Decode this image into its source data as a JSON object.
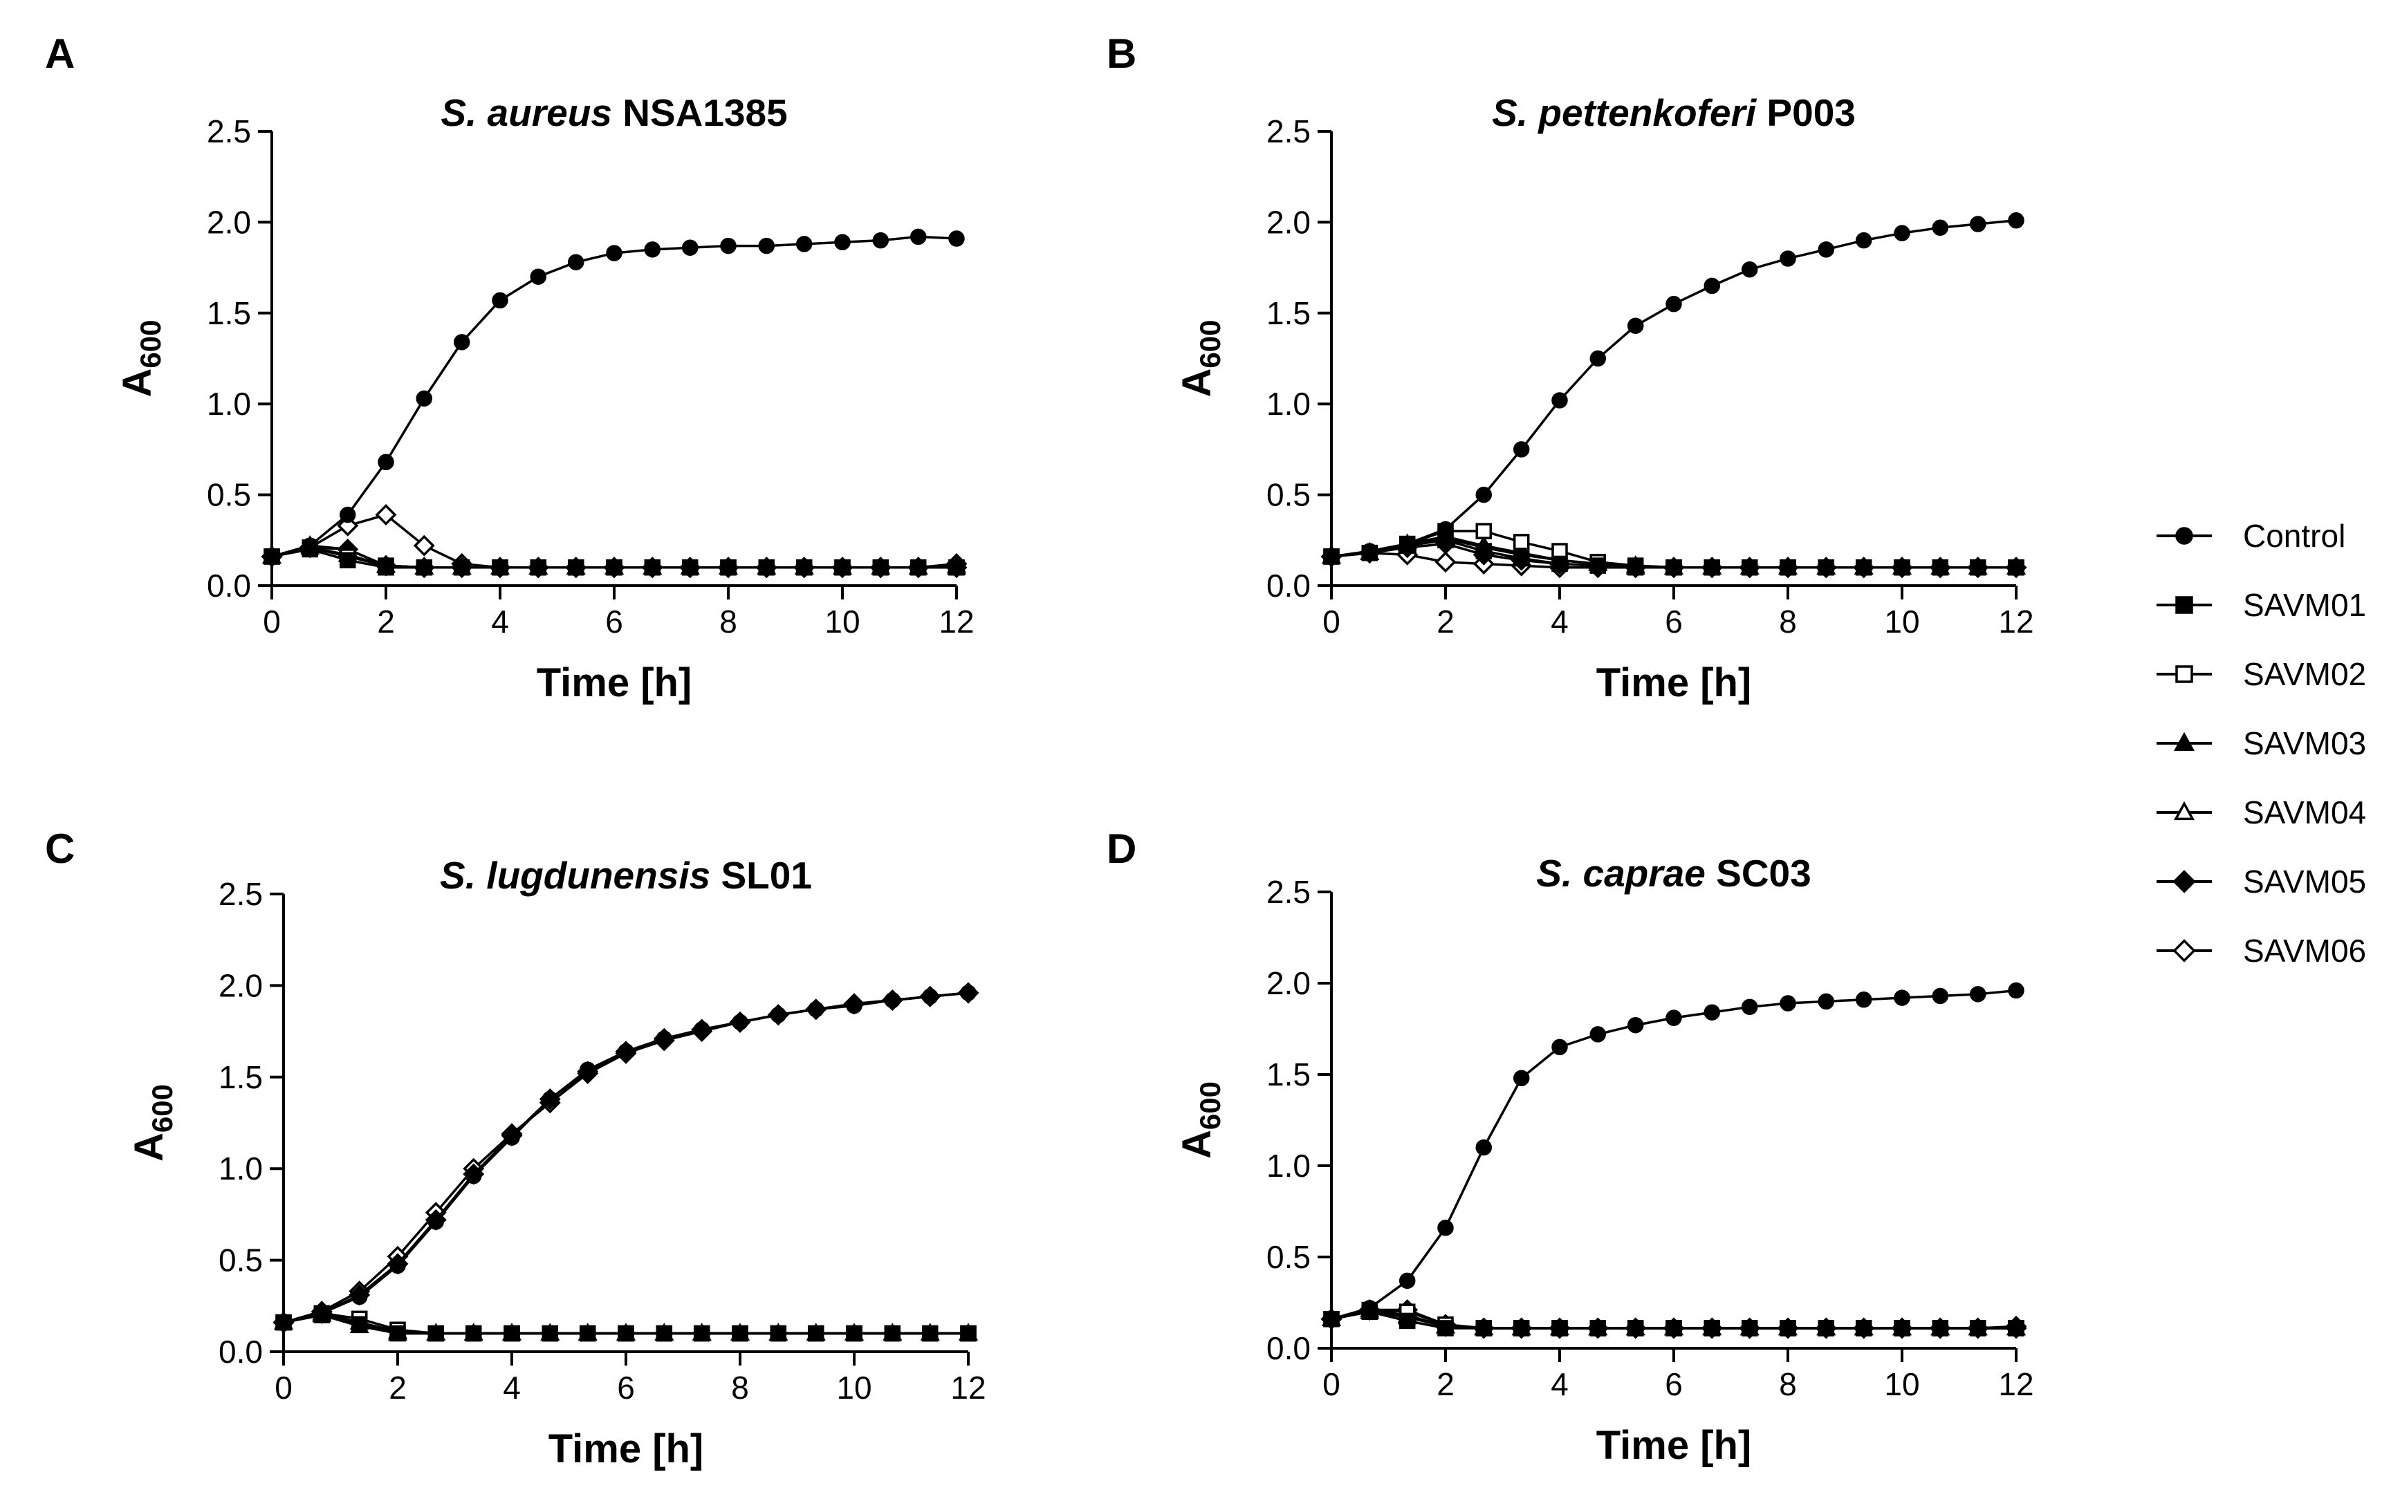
{
  "figure": {
    "legend": {
      "entries": [
        {
          "name": "Control",
          "marker": "circle",
          "filled": true
        },
        {
          "name": "SAVM01",
          "marker": "square",
          "filled": true
        },
        {
          "name": "SAVM02",
          "marker": "square",
          "filled": false
        },
        {
          "name": "SAVM03",
          "marker": "triangle",
          "filled": true
        },
        {
          "name": "SAVM04",
          "marker": "triangle",
          "filled": false
        },
        {
          "name": "SAVM05",
          "marker": "diamond",
          "filled": true
        },
        {
          "name": "SAVM06",
          "marker": "diamond",
          "filled": false
        }
      ]
    }
  },
  "chart_data": [
    {
      "panel": "A",
      "type": "line",
      "title_italic": "S. aureus",
      "title_rest": " NSA1385",
      "xlabel": "Time [h]",
      "ylabel_main": "A",
      "ylabel_sub": "600",
      "xlim": [
        0,
        12
      ],
      "ylim": [
        0,
        2.5
      ],
      "xticks": [
        "0",
        "2",
        "4",
        "6",
        "8",
        "10",
        "12"
      ],
      "yticks": [
        "0.0",
        "0.5",
        "1.0",
        "1.5",
        "2.0",
        "2.5"
      ],
      "x": [
        0,
        0.67,
        1.33,
        2,
        2.67,
        3.33,
        4,
        4.67,
        5.33,
        6,
        6.67,
        7.33,
        8,
        8.67,
        9.33,
        10,
        10.67,
        11.33,
        12
      ],
      "series": [
        {
          "name": "Control",
          "values": [
            0.16,
            0.22,
            0.39,
            0.68,
            1.03,
            1.34,
            1.57,
            1.7,
            1.78,
            1.83,
            1.85,
            1.86,
            1.87,
            1.87,
            1.88,
            1.89,
            1.9,
            1.92,
            1.91
          ]
        },
        {
          "name": "SAVM01",
          "values": [
            0.16,
            0.2,
            0.14,
            0.1,
            0.1,
            0.1,
            0.1,
            0.1,
            0.1,
            0.1,
            0.1,
            0.1,
            0.1,
            0.1,
            0.1,
            0.1,
            0.1,
            0.1,
            0.1
          ]
        },
        {
          "name": "SAVM02",
          "values": [
            0.16,
            0.21,
            0.16,
            0.11,
            0.1,
            0.1,
            0.1,
            0.1,
            0.1,
            0.1,
            0.1,
            0.1,
            0.1,
            0.1,
            0.1,
            0.1,
            0.1,
            0.1,
            0.1
          ]
        },
        {
          "name": "SAVM03",
          "values": [
            0.16,
            0.22,
            0.2,
            0.11,
            0.1,
            0.1,
            0.1,
            0.1,
            0.1,
            0.1,
            0.1,
            0.1,
            0.1,
            0.1,
            0.1,
            0.1,
            0.1,
            0.1,
            0.1
          ]
        },
        {
          "name": "SAVM04",
          "values": [
            0.16,
            0.21,
            0.17,
            0.11,
            0.1,
            0.1,
            0.1,
            0.1,
            0.1,
            0.1,
            0.1,
            0.1,
            0.1,
            0.1,
            0.1,
            0.1,
            0.1,
            0.1,
            0.11
          ]
        },
        {
          "name": "SAVM05",
          "values": [
            0.16,
            0.21,
            0.2,
            0.11,
            0.1,
            0.1,
            0.1,
            0.1,
            0.1,
            0.1,
            0.1,
            0.1,
            0.1,
            0.1,
            0.1,
            0.1,
            0.1,
            0.1,
            0.1
          ]
        },
        {
          "name": "SAVM06",
          "values": [
            0.16,
            0.21,
            0.33,
            0.39,
            0.22,
            0.12,
            0.1,
            0.1,
            0.1,
            0.1,
            0.1,
            0.1,
            0.1,
            0.1,
            0.1,
            0.1,
            0.1,
            0.1,
            0.12
          ]
        }
      ]
    },
    {
      "panel": "B",
      "type": "line",
      "title_italic": "S. pettenkoferi",
      "title_rest": " P003",
      "xlabel": "Time [h]",
      "ylabel_main": "A",
      "ylabel_sub": "600",
      "xlim": [
        0,
        12
      ],
      "ylim": [
        0,
        2.5
      ],
      "xticks": [
        "0",
        "2",
        "4",
        "6",
        "8",
        "10",
        "12"
      ],
      "yticks": [
        "0.0",
        "0.5",
        "1.0",
        "1.5",
        "2.0",
        "2.5"
      ],
      "x": [
        0,
        0.67,
        1.33,
        2,
        2.67,
        3.33,
        4,
        4.67,
        5.33,
        6,
        6.67,
        7.33,
        8,
        8.67,
        9.33,
        10,
        10.67,
        11.33,
        12
      ],
      "series": [
        {
          "name": "Control",
          "values": [
            0.16,
            0.19,
            0.23,
            0.31,
            0.5,
            0.75,
            1.02,
            1.25,
            1.43,
            1.55,
            1.65,
            1.74,
            1.8,
            1.85,
            1.9,
            1.94,
            1.97,
            1.99,
            2.01
          ]
        },
        {
          "name": "SAVM01",
          "values": [
            0.16,
            0.18,
            0.22,
            0.25,
            0.19,
            0.15,
            0.12,
            0.11,
            0.1,
            0.1,
            0.1,
            0.1,
            0.1,
            0.1,
            0.1,
            0.1,
            0.1,
            0.1,
            0.1
          ]
        },
        {
          "name": "SAVM02",
          "values": [
            0.16,
            0.18,
            0.23,
            0.3,
            0.3,
            0.24,
            0.19,
            0.13,
            0.11,
            0.1,
            0.1,
            0.1,
            0.1,
            0.1,
            0.1,
            0.1,
            0.1,
            0.1,
            0.1
          ]
        },
        {
          "name": "SAVM03",
          "values": [
            0.16,
            0.18,
            0.23,
            0.27,
            0.22,
            0.18,
            0.14,
            0.12,
            0.11,
            0.1,
            0.1,
            0.1,
            0.1,
            0.1,
            0.1,
            0.1,
            0.1,
            0.1,
            0.1
          ]
        },
        {
          "name": "SAVM04",
          "values": [
            0.16,
            0.18,
            0.22,
            0.26,
            0.21,
            0.17,
            0.14,
            0.12,
            0.1,
            0.1,
            0.1,
            0.1,
            0.1,
            0.1,
            0.1,
            0.1,
            0.1,
            0.1,
            0.1
          ]
        },
        {
          "name": "SAVM05",
          "values": [
            0.16,
            0.18,
            0.21,
            0.23,
            0.17,
            0.14,
            0.12,
            0.11,
            0.1,
            0.1,
            0.1,
            0.1,
            0.1,
            0.1,
            0.1,
            0.1,
            0.1,
            0.1,
            0.1
          ]
        },
        {
          "name": "SAVM06",
          "values": [
            0.16,
            0.18,
            0.17,
            0.13,
            0.12,
            0.11,
            0.1,
            0.1,
            0.1,
            0.1,
            0.1,
            0.1,
            0.1,
            0.1,
            0.1,
            0.1,
            0.1,
            0.1,
            0.1
          ]
        }
      ]
    },
    {
      "panel": "C",
      "type": "line",
      "title_italic": "S. lugdunensis",
      "title_rest": " SL01",
      "xlabel": "Time [h]",
      "ylabel_main": "A",
      "ylabel_sub": "600",
      "xlim": [
        0,
        12
      ],
      "ylim": [
        0,
        2.5
      ],
      "xticks": [
        "0",
        "2",
        "4",
        "6",
        "8",
        "10",
        "12"
      ],
      "yticks": [
        "0.0",
        "0.5",
        "1.0",
        "1.5",
        "2.0",
        "2.5"
      ],
      "x": [
        0,
        0.67,
        1.33,
        2,
        2.67,
        3.33,
        4,
        4.67,
        5.33,
        6,
        6.67,
        7.33,
        8,
        8.67,
        9.33,
        10,
        10.67,
        11.33,
        12
      ],
      "series": [
        {
          "name": "Control",
          "values": [
            0.16,
            0.21,
            0.3,
            0.47,
            0.71,
            0.96,
            1.17,
            1.38,
            1.54,
            1.64,
            1.71,
            1.76,
            1.8,
            1.84,
            1.87,
            1.89,
            1.92,
            1.94,
            1.96
          ]
        },
        {
          "name": "SAVM01",
          "values": [
            0.16,
            0.2,
            0.15,
            0.1,
            0.1,
            0.1,
            0.1,
            0.1,
            0.1,
            0.1,
            0.1,
            0.1,
            0.1,
            0.1,
            0.1,
            0.1,
            0.1,
            0.1,
            0.1
          ]
        },
        {
          "name": "SAVM02",
          "values": [
            0.16,
            0.21,
            0.18,
            0.12,
            0.1,
            0.1,
            0.1,
            0.1,
            0.1,
            0.1,
            0.1,
            0.1,
            0.1,
            0.1,
            0.1,
            0.1,
            0.1,
            0.1,
            0.1
          ]
        },
        {
          "name": "SAVM03",
          "values": [
            0.16,
            0.2,
            0.14,
            0.1,
            0.1,
            0.1,
            0.1,
            0.1,
            0.1,
            0.1,
            0.1,
            0.1,
            0.1,
            0.1,
            0.1,
            0.1,
            0.1,
            0.1,
            0.1
          ]
        },
        {
          "name": "SAVM04",
          "values": [
            0.16,
            0.21,
            0.16,
            0.11,
            0.1,
            0.1,
            0.1,
            0.1,
            0.1,
            0.1,
            0.1,
            0.1,
            0.1,
            0.1,
            0.1,
            0.1,
            0.1,
            0.1,
            0.1
          ]
        },
        {
          "name": "SAVM05",
          "values": [
            0.16,
            0.21,
            0.31,
            0.48,
            0.72,
            0.97,
            1.18,
            1.38,
            1.53,
            1.64,
            1.71,
            1.76,
            1.8,
            1.84,
            1.87,
            1.9,
            1.92,
            1.94,
            1.96
          ]
        },
        {
          "name": "SAVM06",
          "values": [
            0.16,
            0.22,
            0.33,
            0.52,
            0.76,
            1.0,
            1.19,
            1.36,
            1.52,
            1.63,
            1.7,
            1.75,
            1.8,
            1.84,
            1.87,
            1.9,
            1.92,
            1.94,
            1.96
          ]
        }
      ]
    },
    {
      "panel": "D",
      "type": "line",
      "title_italic": "S. caprae",
      "title_rest": " SC03",
      "xlabel": "Time [h]",
      "ylabel_main": "A",
      "ylabel_sub": "600",
      "xlim": [
        0,
        12
      ],
      "ylim": [
        0,
        2.5
      ],
      "xticks": [
        "0",
        "2",
        "4",
        "6",
        "8",
        "10",
        "12"
      ],
      "yticks": [
        "0.0",
        "0.5",
        "1.0",
        "1.5",
        "2.0",
        "2.5"
      ],
      "x": [
        0,
        0.67,
        1.33,
        2,
        2.67,
        3.33,
        4,
        4.67,
        5.33,
        6,
        6.67,
        7.33,
        8,
        8.67,
        9.33,
        10,
        10.67,
        11.33,
        12
      ],
      "series": [
        {
          "name": "Control",
          "values": [
            0.16,
            0.22,
            0.37,
            0.66,
            1.1,
            1.48,
            1.65,
            1.72,
            1.77,
            1.81,
            1.84,
            1.87,
            1.89,
            1.9,
            1.91,
            1.92,
            1.93,
            1.94,
            1.96
          ]
        },
        {
          "name": "SAVM01",
          "values": [
            0.16,
            0.2,
            0.15,
            0.11,
            0.11,
            0.11,
            0.11,
            0.11,
            0.11,
            0.11,
            0.11,
            0.11,
            0.11,
            0.11,
            0.11,
            0.11,
            0.11,
            0.11,
            0.11
          ]
        },
        {
          "name": "SAVM02",
          "values": [
            0.16,
            0.21,
            0.2,
            0.13,
            0.11,
            0.11,
            0.11,
            0.11,
            0.11,
            0.11,
            0.11,
            0.11,
            0.11,
            0.11,
            0.11,
            0.11,
            0.11,
            0.11,
            0.11
          ]
        },
        {
          "name": "SAVM03",
          "values": [
            0.16,
            0.2,
            0.17,
            0.12,
            0.11,
            0.11,
            0.11,
            0.11,
            0.11,
            0.11,
            0.11,
            0.11,
            0.11,
            0.11,
            0.11,
            0.11,
            0.11,
            0.11,
            0.11
          ]
        },
        {
          "name": "SAVM04",
          "values": [
            0.16,
            0.21,
            0.18,
            0.12,
            0.11,
            0.11,
            0.11,
            0.11,
            0.11,
            0.11,
            0.11,
            0.11,
            0.11,
            0.11,
            0.11,
            0.11,
            0.11,
            0.11,
            0.11
          ]
        },
        {
          "name": "SAVM05",
          "values": [
            0.16,
            0.21,
            0.21,
            0.13,
            0.11,
            0.11,
            0.11,
            0.11,
            0.11,
            0.11,
            0.11,
            0.11,
            0.11,
            0.11,
            0.11,
            0.11,
            0.11,
            0.11,
            0.12
          ]
        },
        {
          "name": "SAVM06",
          "values": [
            0.16,
            0.21,
            0.18,
            0.12,
            0.11,
            0.11,
            0.11,
            0.11,
            0.11,
            0.11,
            0.11,
            0.11,
            0.11,
            0.11,
            0.11,
            0.11,
            0.11,
            0.11,
            0.11
          ]
        }
      ]
    }
  ]
}
